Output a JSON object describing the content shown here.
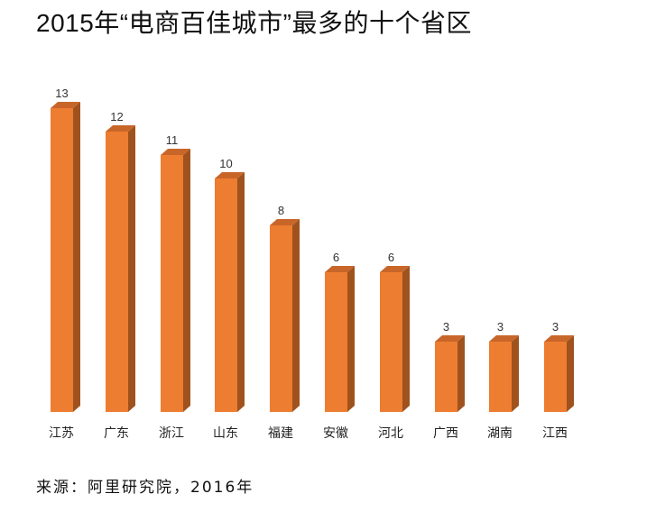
{
  "chart_data": {
    "type": "bar",
    "title": "2015年“电商百佳城市”最多的十个省区",
    "categories": [
      "江苏",
      "广东",
      "浙江",
      "山东",
      "福建",
      "安徽",
      "河北",
      "广西",
      "湖南",
      "江西"
    ],
    "values": [
      13,
      12,
      11,
      10,
      8,
      6,
      6,
      3,
      3,
      3
    ],
    "xlabel": "",
    "ylabel": "",
    "ylim": [
      0,
      13
    ],
    "grid": false,
    "legend": "none",
    "data_labels": true,
    "style": "3d-column",
    "colors": {
      "front": "#ED7D31",
      "side": "#A0521E",
      "top": "#C8662A"
    },
    "source": "来源：阿里研究院，2016年"
  }
}
